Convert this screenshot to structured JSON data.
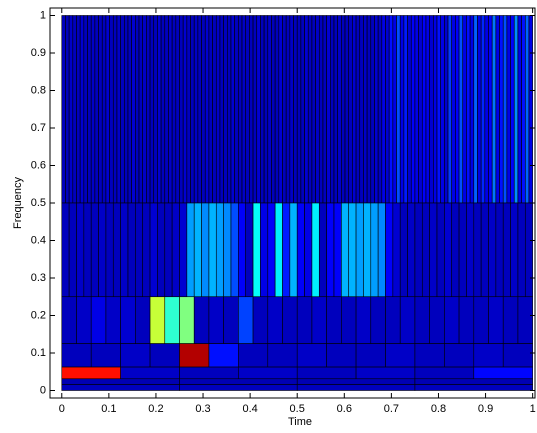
{
  "chart_data": {
    "type": "tiling",
    "xlabel": "Time",
    "ylabel": "Frequency",
    "xlim": [
      -0.025,
      1.005
    ],
    "ylim": [
      -0.02,
      1.02
    ],
    "xticks": [
      0,
      0.1,
      0.2,
      0.3,
      0.4,
      0.5,
      0.6,
      0.7,
      0.8,
      0.9,
      1
    ],
    "yticks": [
      0,
      0.1,
      0.2,
      0.3,
      0.4,
      0.5,
      0.6,
      0.7,
      0.8,
      0.9,
      1
    ],
    "colormap": "jet",
    "bands": [
      {
        "flim": [
          0.5,
          1
        ],
        "values": [
          0.06,
          0.06,
          0.07,
          0.06,
          0.06,
          0.08,
          0.06,
          0.06,
          0.07,
          0.06,
          0.06,
          0.06,
          0.08,
          0.06,
          0.06,
          0.07,
          0.06,
          0.06,
          0.06,
          0.08,
          0.06,
          0.06,
          0.07,
          0.06,
          0.06,
          0.06,
          0.08,
          0.06,
          0.06,
          0.07,
          0.06,
          0.06,
          0.06,
          0.08,
          0.06,
          0.06,
          0.07,
          0.06,
          0.06,
          0.08,
          0.06,
          0.06,
          0.07,
          0.06,
          0.06,
          0.06,
          0.08,
          0.06,
          0.06,
          0.07,
          0.06,
          0.06,
          0.06,
          0.08,
          0.06,
          0.06,
          0.07,
          0.06,
          0.06,
          0.08,
          0.06,
          0.06,
          0.07,
          0.06,
          0.06,
          0.06,
          0.08,
          0.06,
          0.06,
          0.07,
          0.06,
          0.06,
          0.08,
          0.06,
          0.06,
          0.07,
          0.06,
          0.06,
          0.06,
          0.08,
          0.06,
          0.06,
          0.07,
          0.06,
          0.06,
          0.08,
          0.06,
          0.1,
          0.08,
          0.14,
          0.1,
          0.2,
          0.1,
          0.15,
          0.08,
          0.12,
          0.1,
          0.08,
          0.12,
          0.1,
          0.08,
          0.1,
          0.14,
          0.1,
          0.08,
          0.18,
          0.1,
          0.12,
          0.2,
          0.1,
          0.14,
          0.1,
          0.22,
          0.1,
          0.16,
          0.1,
          0.12,
          0.24,
          0.1,
          0.14,
          0.2,
          0.1,
          0.12,
          0.26,
          0.1,
          0.14,
          0.22,
          0.1
        ]
      },
      {
        "flim": [
          0.25,
          0.5
        ],
        "values": [
          0.06,
          0.06,
          0.07,
          0.06,
          0.06,
          0.07,
          0.06,
          0.06,
          0.07,
          0.06,
          0.06,
          0.06,
          0.08,
          0.06,
          0.06,
          0.07,
          0.08,
          0.28,
          0.3,
          0.26,
          0.3,
          0.28,
          0.26,
          0.2,
          0.12,
          0.06,
          0.38,
          0.1,
          0.12,
          0.36,
          0.15,
          0.3,
          0.12,
          0.1,
          0.36,
          0.06,
          0.12,
          0.12,
          0.3,
          0.3,
          0.28,
          0.3,
          0.28,
          0.26,
          0.12,
          0.08,
          0.06,
          0.07,
          0.06,
          0.06,
          0.07,
          0.06,
          0.08,
          0.06,
          0.06,
          0.07,
          0.06,
          0.06,
          0.07,
          0.06,
          0.06,
          0.07,
          0.06,
          0.06
        ]
      },
      {
        "flim": [
          0.125,
          0.25
        ],
        "values": [
          0.06,
          0.07,
          0.1,
          0.07,
          0.08,
          0.06,
          0.57,
          0.42,
          0.5,
          0.06,
          0.07,
          0.06,
          0.19,
          0.06,
          0.07,
          0.06,
          0.06,
          0.07,
          0.06,
          0.06,
          0.07,
          0.06,
          0.06,
          0.07,
          0.06,
          0.06,
          0.07,
          0.06,
          0.06,
          0.07,
          0.06,
          0.06
        ]
      },
      {
        "flim": [
          0.0625,
          0.125
        ],
        "values": [
          0.06,
          0.06,
          0.07,
          0.06,
          0.95,
          0.14,
          0.06,
          0.06,
          0.07,
          0.06,
          0.06,
          0.07,
          0.06,
          0.06,
          0.07,
          0.06
        ]
      },
      {
        "flim": [
          0.03125,
          0.0625
        ],
        "values": [
          0.86,
          0.07,
          0.06,
          0.07,
          0.06,
          0.07,
          0.06,
          0.13
        ]
      },
      {
        "flim": [
          0.015625,
          0.03125
        ],
        "values": [
          0.05,
          0.05,
          0.05,
          0.05
        ]
      },
      {
        "flim": [
          0,
          0.015625
        ],
        "values": [
          0.06,
          0.06,
          0.06,
          0.06
        ]
      }
    ]
  }
}
